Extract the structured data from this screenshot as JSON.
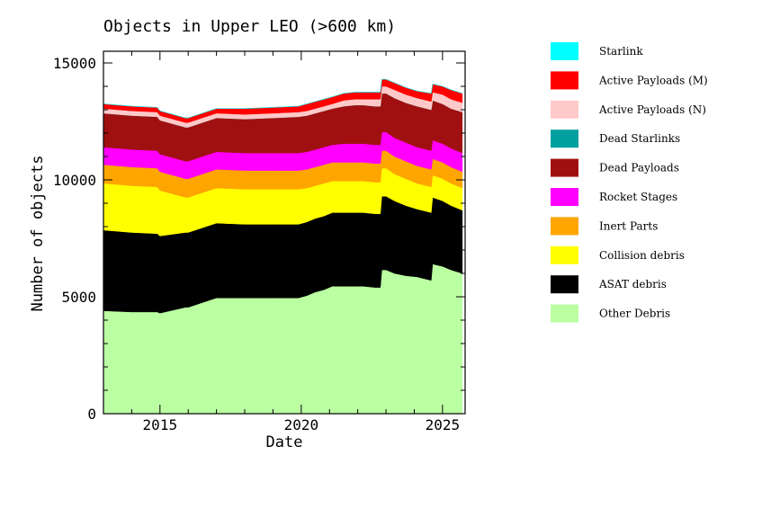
{
  "chart_data": {
    "type": "area",
    "stacked": true,
    "title": "Objects in Upper LEO (>600 km)",
    "xlabel": "Date",
    "ylabel": "Number of objects",
    "xlim": [
      2013.0,
      2025.8
    ],
    "ylim": [
      0,
      15500
    ],
    "x_ticks": [
      2015,
      2020,
      2025
    ],
    "y_ticks": [
      0,
      5000,
      10000,
      15000
    ],
    "grid": false,
    "legend_position": "right",
    "x": [
      2013.0,
      2014.0,
      2014.9,
      2015.0,
      2015.9,
      2016.0,
      2017.0,
      2018.0,
      2019.0,
      2019.9,
      2020.2,
      2020.5,
      2020.8,
      2021.1,
      2021.5,
      2021.9,
      2022.2,
      2022.6,
      2022.8,
      2022.85,
      2023.0,
      2023.3,
      2023.7,
      2024.1,
      2024.6,
      2024.65,
      2025.0,
      2025.3,
      2025.7
    ],
    "series": [
      {
        "name": "Other Debris",
        "color": "#bbffa3",
        "values": [
          4400,
          4350,
          4350,
          4300,
          4550,
          4550,
          4950,
          4950,
          4950,
          4950,
          5050,
          5200,
          5300,
          5450,
          5450,
          5450,
          5450,
          5400,
          5400,
          6150,
          6150,
          6000,
          5900,
          5850,
          5700,
          6400,
          6300,
          6150,
          6000
        ]
      },
      {
        "name": "ASAT debris",
        "color": "#000000",
        "values": [
          3450,
          3400,
          3350,
          3300,
          3200,
          3200,
          3200,
          3150,
          3150,
          3150,
          3150,
          3150,
          3150,
          3150,
          3150,
          3150,
          3150,
          3150,
          3150,
          3150,
          3150,
          3100,
          3000,
          2900,
          2900,
          2850,
          2800,
          2750,
          2700
        ]
      },
      {
        "name": "Collision debris",
        "color": "#ffff00",
        "values": [
          2000,
          2000,
          2000,
          1950,
          1500,
          1500,
          1500,
          1500,
          1500,
          1500,
          1450,
          1400,
          1400,
          1350,
          1350,
          1350,
          1350,
          1350,
          1350,
          1200,
          1200,
          1150,
          1150,
          1100,
          1100,
          950,
          950,
          950,
          950
        ]
      },
      {
        "name": "Inert Parts",
        "color": "#ffa500",
        "values": [
          800,
          800,
          800,
          800,
          800,
          800,
          800,
          800,
          800,
          800,
          800,
          800,
          800,
          800,
          800,
          800,
          800,
          800,
          800,
          750,
          750,
          750,
          750,
          750,
          750,
          700,
          700,
          700,
          700
        ]
      },
      {
        "name": "Rocket Stages",
        "color": "#ff00ff",
        "values": [
          750,
          750,
          750,
          750,
          750,
          750,
          750,
          750,
          750,
          750,
          750,
          750,
          750,
          750,
          800,
          800,
          800,
          800,
          800,
          800,
          800,
          800,
          800,
          800,
          800,
          800,
          800,
          800,
          800
        ]
      },
      {
        "name": "Dead Payloads",
        "color": "#a11010",
        "values": [
          1450,
          1450,
          1450,
          1450,
          1450,
          1450,
          1450,
          1450,
          1500,
          1550,
          1550,
          1550,
          1550,
          1550,
          1600,
          1650,
          1650,
          1650,
          1650,
          1650,
          1650,
          1700,
          1700,
          1750,
          1750,
          1700,
          1700,
          1700,
          1750
        ]
      },
      {
        "name": "Dead Starlinks",
        "color": "#00a0a0",
        "values": [
          0,
          0,
          0,
          0,
          0,
          0,
          0,
          0,
          0,
          0,
          0,
          0,
          0,
          0,
          0,
          0,
          0,
          0,
          0,
          0,
          0,
          0,
          0,
          0,
          0,
          0,
          0,
          0,
          0
        ]
      },
      {
        "name": "Active Payloads (N)",
        "color": "#ffc9c9",
        "values": [
          200,
          200,
          200,
          200,
          200,
          200,
          200,
          200,
          200,
          200,
          200,
          200,
          200,
          200,
          250,
          250,
          250,
          300,
          300,
          300,
          300,
          350,
          350,
          350,
          350,
          350,
          400,
          400,
          400
        ]
      },
      {
        "name": "Active Payloads (M)",
        "color": "#ff0000",
        "values": [
          200,
          200,
          200,
          200,
          200,
          200,
          200,
          250,
          250,
          250,
          300,
          300,
          300,
          300,
          300,
          300,
          300,
          300,
          300,
          300,
          300,
          300,
          300,
          300,
          350,
          350,
          350,
          400,
          400
        ]
      },
      {
        "name": "Starlink",
        "color": "#00ffff",
        "values": [
          0,
          0,
          0,
          0,
          0,
          0,
          0,
          0,
          0,
          0,
          0,
          0,
          0,
          0,
          0,
          0,
          0,
          0,
          0,
          0,
          0,
          0,
          0,
          0,
          0,
          0,
          0,
          0,
          0
        ]
      }
    ],
    "legend_order": [
      "Starlink",
      "Active Payloads (M)",
      "Active Payloads (N)",
      "Dead Starlinks",
      "Dead Payloads",
      "Rocket Stages",
      "Inert Parts",
      "Collision debris",
      "ASAT debris",
      "Other Debris"
    ]
  }
}
